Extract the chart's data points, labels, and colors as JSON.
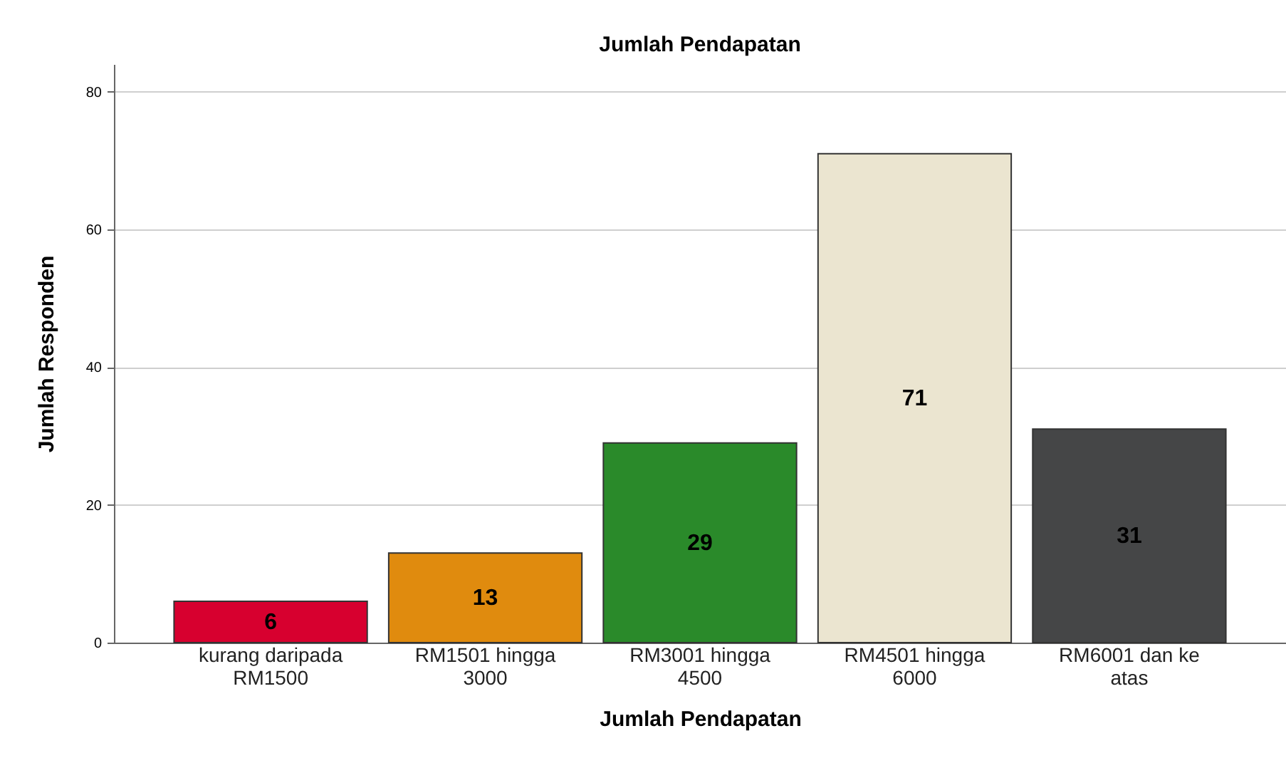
{
  "chart_data": {
    "type": "bar",
    "title": "Jumlah Pendapatan",
    "xlabel": "Jumlah Pendapatan",
    "ylabel": "Jumlah Responden",
    "categories": [
      "kurang daripada RM1500",
      "RM1501 hingga 3000",
      "RM3001 hingga 4500",
      "RM4501 hingga 6000",
      "RM6001 dan ke atas"
    ],
    "values": [
      6,
      13,
      29,
      71,
      31
    ],
    "colors": [
      "#d7002f",
      "#e08b0e",
      "#2a8a2a",
      "#ebe5d0",
      "#454647"
    ],
    "ylim": [
      0,
      84
    ],
    "yticks": [
      0,
      20,
      40,
      60,
      80
    ],
    "grid": "y",
    "data_labels": true
  }
}
